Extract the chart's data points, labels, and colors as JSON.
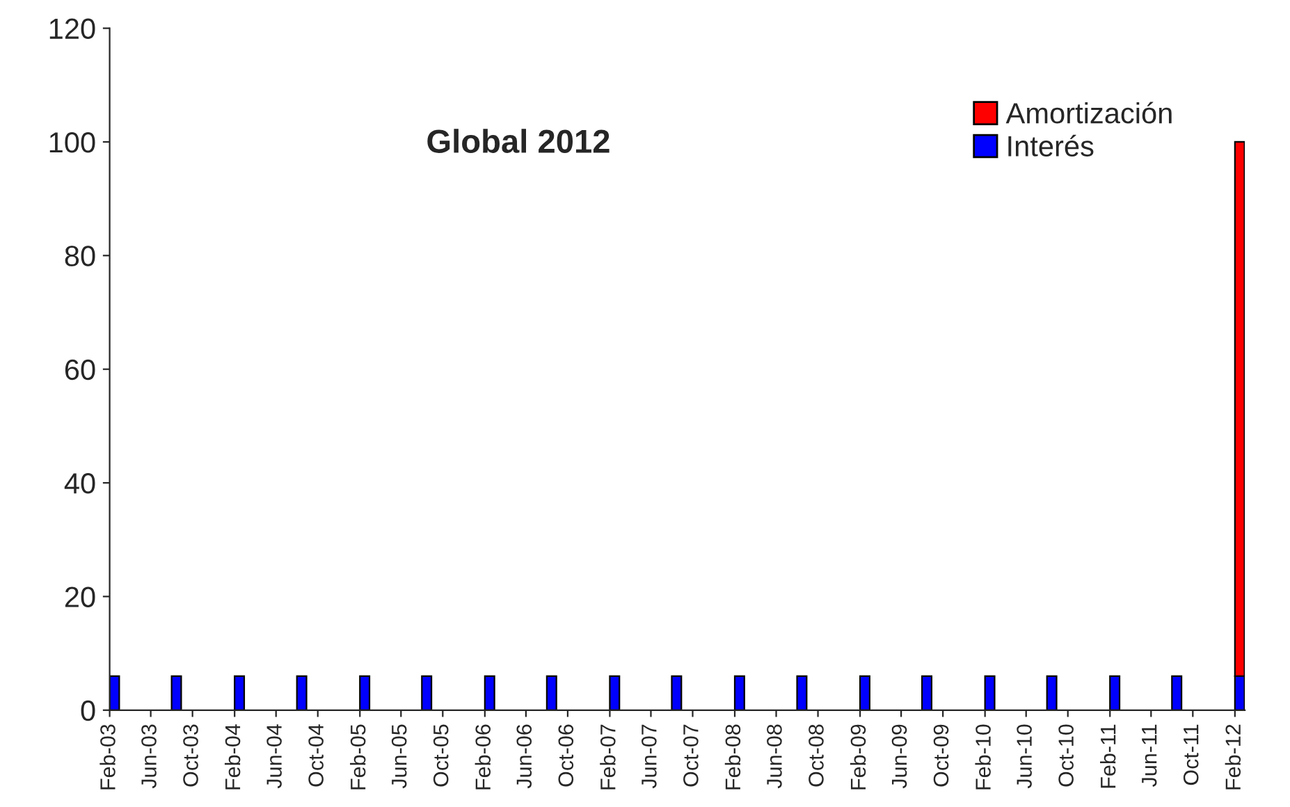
{
  "chart_data": {
    "type": "bar",
    "title": "Global 2012",
    "stacked": true,
    "x": [
      "2003-02",
      "2003-08",
      "2004-02",
      "2004-08",
      "2005-02",
      "2005-08",
      "2006-02",
      "2006-08",
      "2007-02",
      "2007-08",
      "2008-02",
      "2008-08",
      "2009-02",
      "2009-08",
      "2010-02",
      "2010-08",
      "2011-02",
      "2011-08",
      "2012-02"
    ],
    "series": [
      {
        "name": "Interés",
        "color": "#0000ff",
        "values": [
          6,
          6,
          6,
          6,
          6,
          6,
          6,
          6,
          6,
          6,
          6,
          6,
          6,
          6,
          6,
          6,
          6,
          6,
          6
        ]
      },
      {
        "name": "Amortización",
        "color": "#ff0000",
        "values": [
          null,
          null,
          null,
          null,
          null,
          null,
          null,
          null,
          null,
          null,
          null,
          null,
          null,
          null,
          null,
          null,
          null,
          null,
          94
        ]
      }
    ],
    "xlim": [
      "2003-02",
      "2012-03"
    ],
    "xticks": [
      {
        "value": "2003-02",
        "label": "Feb-03"
      },
      {
        "value": "2003-06",
        "label": "Jun-03"
      },
      {
        "value": "2003-10",
        "label": "Oct-03"
      },
      {
        "value": "2004-02",
        "label": "Feb-04"
      },
      {
        "value": "2004-06",
        "label": "Jun-04"
      },
      {
        "value": "2004-10",
        "label": "Oct-04"
      },
      {
        "value": "2005-02",
        "label": "Feb-05"
      },
      {
        "value": "2005-06",
        "label": "Jun-05"
      },
      {
        "value": "2005-10",
        "label": "Oct-05"
      },
      {
        "value": "2006-02",
        "label": "Feb-06"
      },
      {
        "value": "2006-06",
        "label": "Jun-06"
      },
      {
        "value": "2006-10",
        "label": "Oct-06"
      },
      {
        "value": "2007-02",
        "label": "Feb-07"
      },
      {
        "value": "2007-06",
        "label": "Jun-07"
      },
      {
        "value": "2007-10",
        "label": "Oct-07"
      },
      {
        "value": "2008-02",
        "label": "Feb-08"
      },
      {
        "value": "2008-06",
        "label": "Jun-08"
      },
      {
        "value": "2008-10",
        "label": "Oct-08"
      },
      {
        "value": "2009-02",
        "label": "Feb-09"
      },
      {
        "value": "2009-06",
        "label": "Jun-09"
      },
      {
        "value": "2009-10",
        "label": "Oct-09"
      },
      {
        "value": "2010-02",
        "label": "Feb-10"
      },
      {
        "value": "2010-06",
        "label": "Jun-10"
      },
      {
        "value": "2010-10",
        "label": "Oct-10"
      },
      {
        "value": "2011-02",
        "label": "Feb-11"
      },
      {
        "value": "2011-06",
        "label": "Jun-11"
      },
      {
        "value": "2011-10",
        "label": "Oct-11"
      },
      {
        "value": "2012-02",
        "label": "Feb-12"
      }
    ],
    "ylim": [
      0,
      120
    ],
    "yticks": [
      0,
      20,
      40,
      60,
      80,
      100,
      120
    ],
    "legend": "top right"
  }
}
